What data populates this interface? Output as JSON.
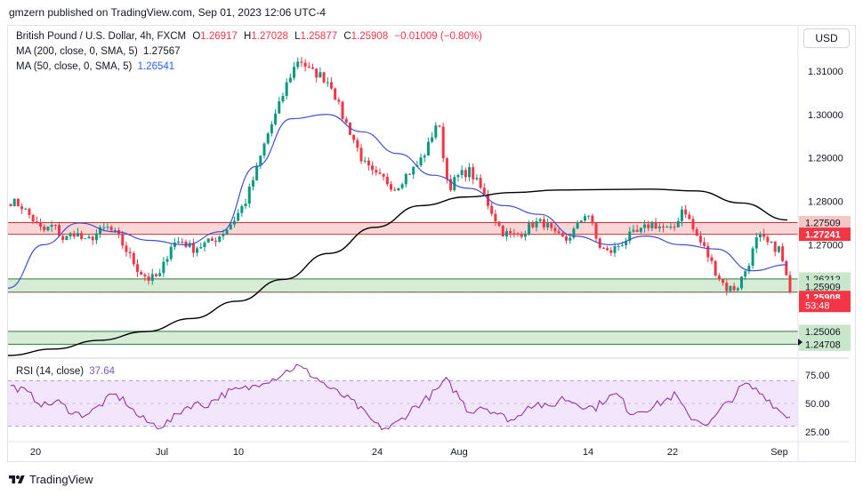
{
  "header": {
    "publisher": "gmzern published on TradingView.com, Sep 01, 2023 12:06 UTC-4"
  },
  "legend": {
    "symbol": "British Pound / U.S. Dollar, 4h, FXCM",
    "open_label": "O",
    "open": "1.26917",
    "high_label": "H",
    "high": "1.27028",
    "low_label": "L",
    "low": "1.25877",
    "close_label": "C",
    "close": "1.25908",
    "change": "−0.01009 (−0.80%)",
    "ma200_label": "MA (200, close, 0, SMA, 5)",
    "ma200_value": "1.27567",
    "ma50_label": "MA (50, close, 0, SMA, 5)",
    "ma50_value": "1.26541"
  },
  "currency_button": "USD",
  "rsi": {
    "label": "RSI (14, close)",
    "value": "37.64",
    "ticks": [
      "75.00",
      "50.00",
      "25.00"
    ],
    "upper_band": 70,
    "lower_band": 30
  },
  "footer": {
    "brand": "TradingView"
  },
  "colors": {
    "up": "#089981",
    "down": "#f23645",
    "ma200": "#000000",
    "ma50": "#3d4fd6",
    "rsi_line": "#8e24aa",
    "resistance_zone": "#f8c8c8",
    "support_zone": "#c8e6c9"
  },
  "chart_data": {
    "type": "candlestick",
    "timeframe": "4h",
    "x_ticks": [
      "20",
      "Jul",
      "10",
      "24",
      "Aug",
      "14",
      "22",
      "Sep"
    ],
    "y_ticks": [
      "1.31000",
      "1.30000",
      "1.29000",
      "1.28000",
      "1.27000"
    ],
    "ylim": [
      1.2445,
      1.3198
    ],
    "price_labels": [
      {
        "text": "1.27509",
        "kind": "resistance"
      },
      {
        "text": "1.27241",
        "kind": "resistance"
      },
      {
        "text": "1.26212",
        "kind": "support"
      },
      {
        "text": "1.25909",
        "kind": "support"
      },
      {
        "text": "1.25908",
        "kind": "last"
      },
      {
        "text": "53:48",
        "kind": "countdown"
      },
      {
        "text": "1.25006",
        "kind": "support"
      },
      {
        "text": "1.24708",
        "kind": "support"
      }
    ],
    "zones": [
      {
        "name": "resistance",
        "from": 1.27241,
        "to": 1.27509
      },
      {
        "name": "support-upper",
        "from": 1.25909,
        "to": 1.26212
      },
      {
        "name": "support-lower",
        "from": 1.24708,
        "to": 1.25006
      }
    ],
    "anchor_closes": [
      1.28,
      1.279,
      1.276,
      1.273,
      1.2745,
      1.271,
      1.273,
      1.2705,
      1.2725,
      1.274,
      1.272,
      1.268,
      1.264,
      1.262,
      1.263,
      1.27,
      1.271,
      1.269,
      1.27,
      1.271,
      1.273,
      1.276,
      1.28,
      1.287,
      1.295,
      1.301,
      1.308,
      1.313,
      1.31,
      1.309,
      1.307,
      1.3,
      1.295,
      1.289,
      1.286,
      1.285,
      1.283,
      1.286,
      1.288,
      1.292,
      1.299,
      1.283,
      1.286,
      1.287,
      1.283,
      1.278,
      1.273,
      1.272,
      1.273,
      1.275,
      1.275,
      1.272,
      1.271,
      1.274,
      1.278,
      1.27,
      1.268,
      1.27,
      1.272,
      1.273,
      1.275,
      1.274,
      1.273,
      1.279,
      1.273,
      1.269,
      1.264,
      1.26,
      1.26,
      1.265,
      1.272,
      1.27,
      1.269,
      1.259
    ],
    "ma200_values": [
      1.2445,
      1.246,
      1.248,
      1.25,
      1.253,
      1.257,
      1.262,
      1.268,
      1.274,
      1.279,
      1.281,
      1.282,
      1.2826,
      1.2827,
      1.2828,
      1.2824,
      1.2796,
      1.2757
    ],
    "ma50_values": [
      1.26,
      1.27,
      1.275,
      1.273,
      1.271,
      1.27,
      1.273,
      1.288,
      1.299,
      1.3,
      1.296,
      1.291,
      1.286,
      1.283,
      1.279,
      1.277,
      1.272,
      1.27,
      1.272,
      1.27,
      1.269,
      1.264,
      1.2654
    ],
    "rsi_values": [
      65,
      62,
      55,
      48,
      52,
      45,
      40,
      42,
      50,
      58,
      52,
      40,
      33,
      30,
      35,
      45,
      50,
      48,
      55,
      60,
      62,
      64,
      70,
      72,
      78,
      83,
      77,
      70,
      62,
      57,
      50,
      40,
      30,
      28,
      35,
      45,
      52,
      60,
      70,
      58,
      42,
      48,
      44,
      38,
      35,
      48,
      50,
      45,
      55,
      52,
      48,
      46,
      55,
      58,
      42,
      44,
      47,
      52,
      58,
      40,
      35,
      32,
      45,
      55,
      67,
      62,
      55,
      44,
      38
    ]
  }
}
